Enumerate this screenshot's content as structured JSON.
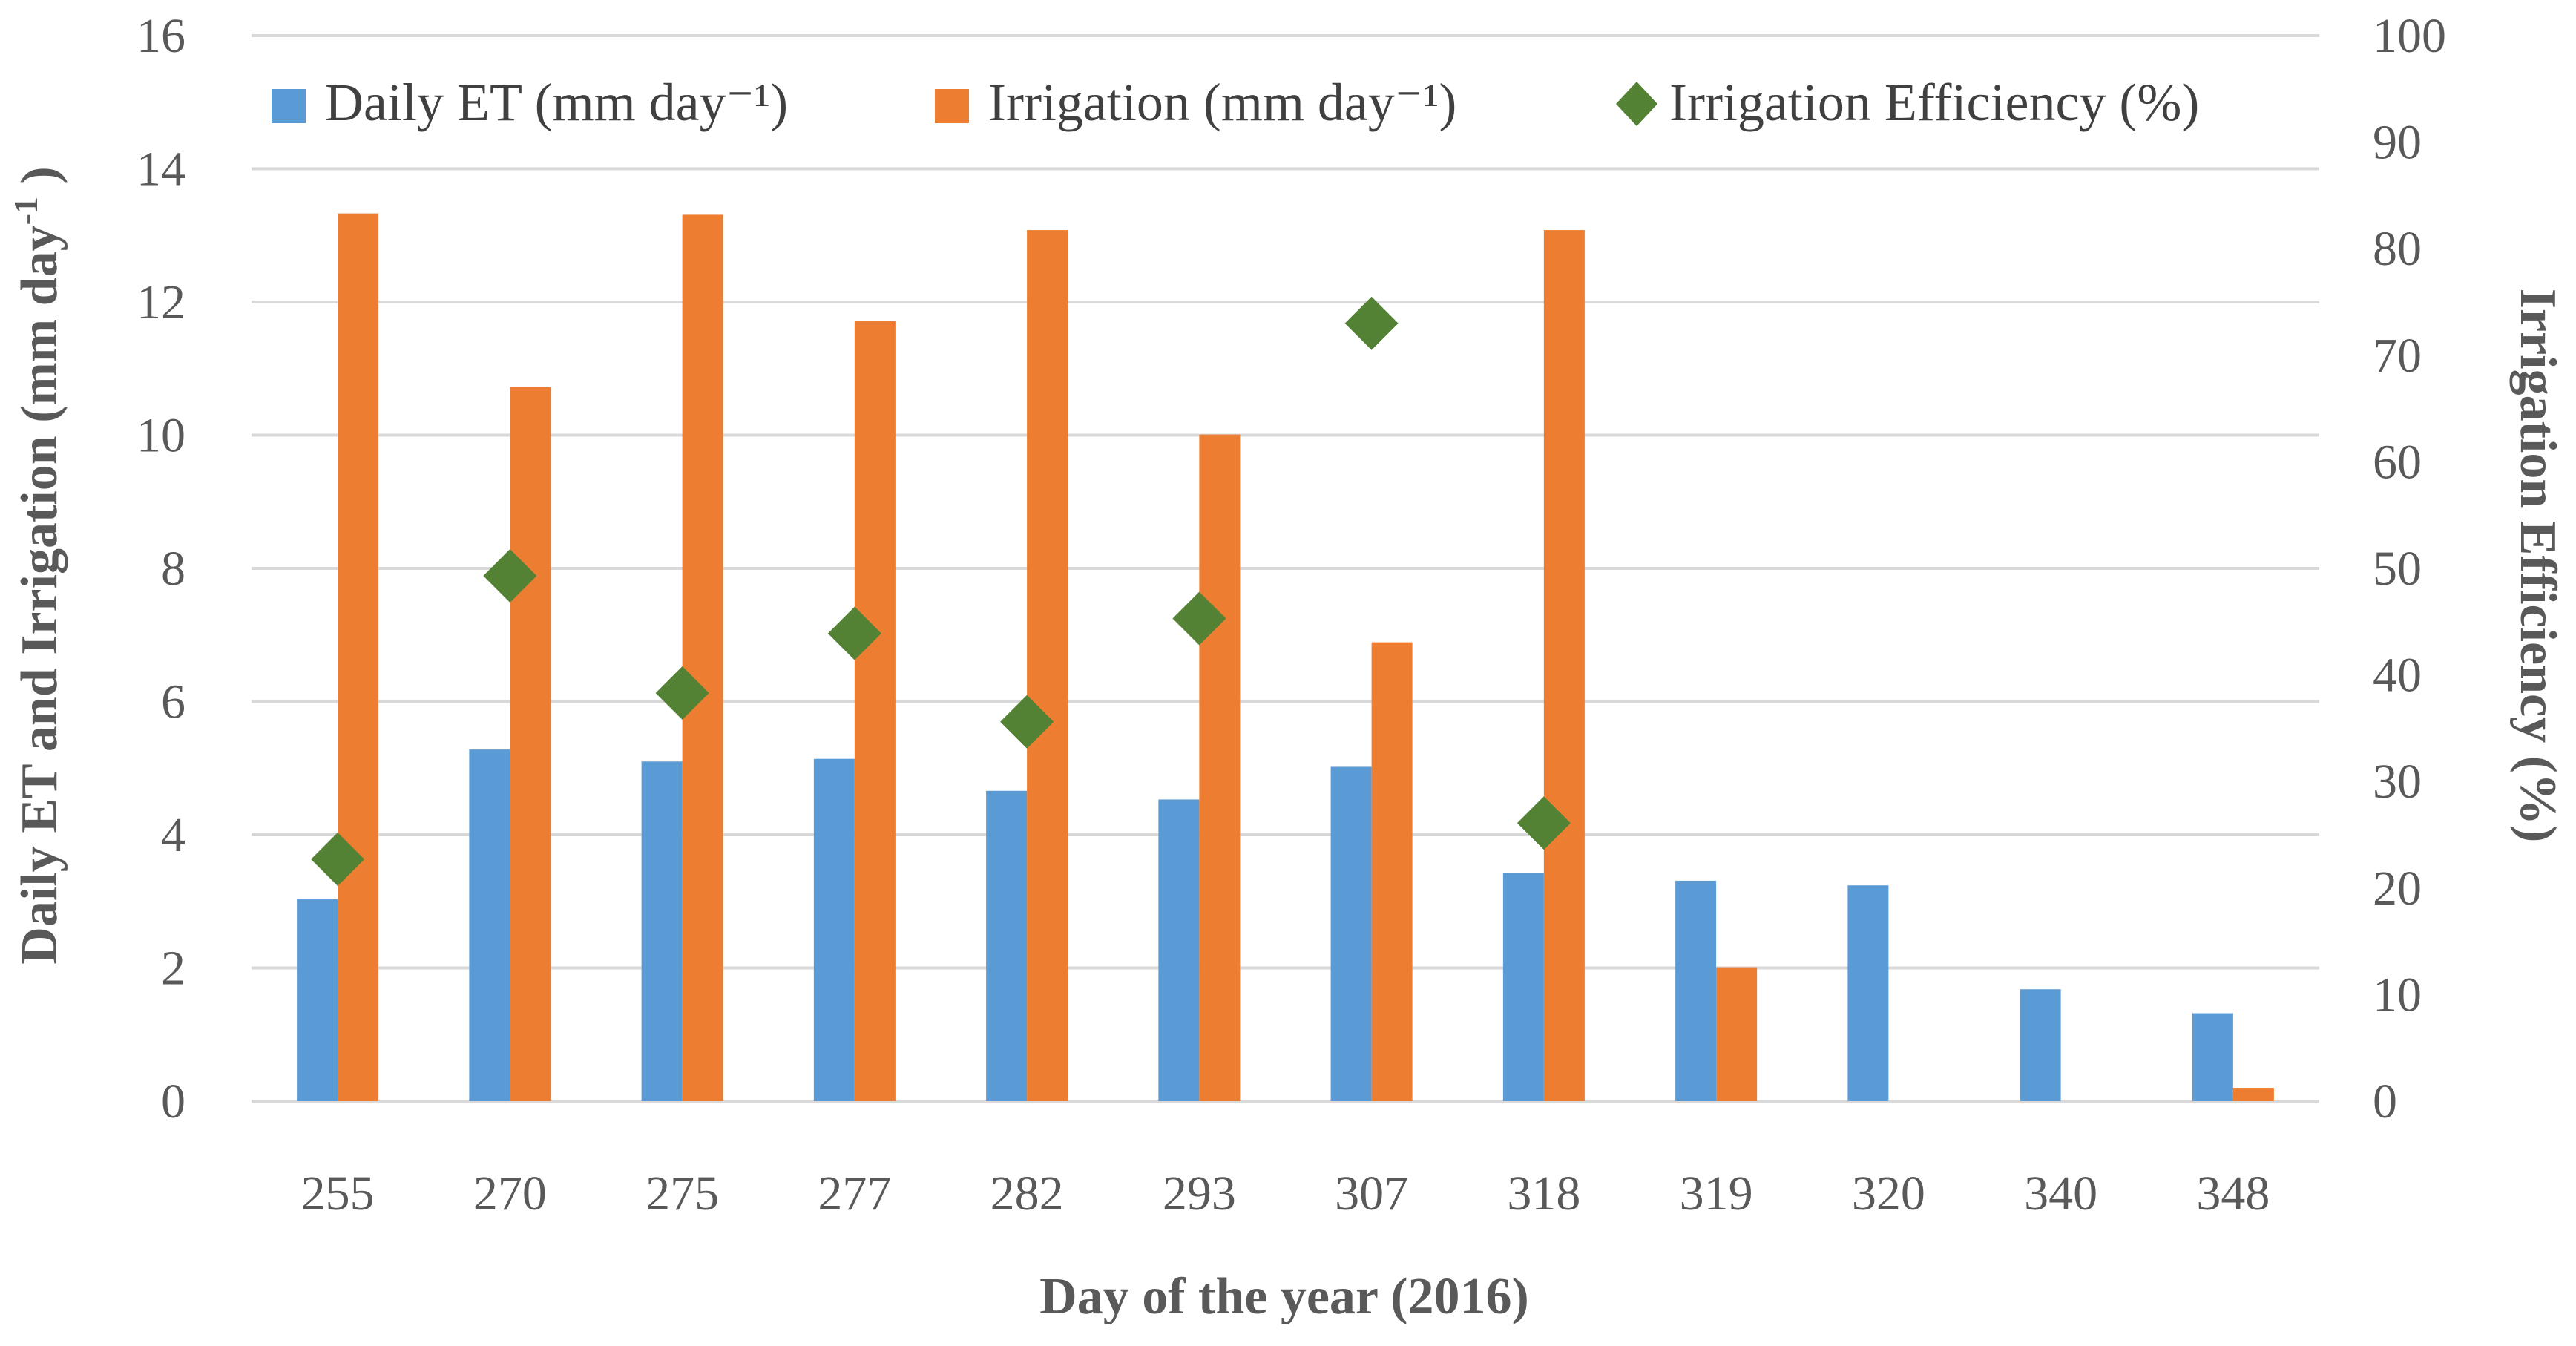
{
  "chart_data": {
    "type": "bar",
    "title": "",
    "categories": [
      "255",
      "270",
      "275",
      "277",
      "282",
      "293",
      "307",
      "318",
      "319",
      "320",
      "340",
      "348"
    ],
    "series": [
      {
        "name": "Daily ET (mm day⁻¹)",
        "kind": "bar",
        "axis": "left",
        "color": "#5b9bd5",
        "values": [
          3.03,
          5.28,
          5.1,
          5.14,
          4.66,
          4.53,
          5.02,
          3.43,
          3.31,
          3.24,
          1.68,
          1.32
        ]
      },
      {
        "name": "Irrigation (mm day⁻¹)",
        "kind": "bar",
        "axis": "left",
        "color": "#ed7d31",
        "values": [
          13.33,
          10.72,
          13.31,
          11.71,
          13.08,
          10.01,
          6.89,
          13.08,
          2.01,
          0,
          0,
          0.2
        ]
      },
      {
        "name": "Irrigation Efficiency (%)",
        "kind": "scatter",
        "axis": "right",
        "color": "#548235",
        "values": [
          22.7,
          49.3,
          38.3,
          43.9,
          35.6,
          45.3,
          null,
          26.1,
          null,
          null,
          null,
          null
        ],
        "extra_points": [
          {
            "x_position": 6.0,
            "value": 73.0
          }
        ]
      }
    ],
    "xlabel": "Day of the year (2016)",
    "ylabel": "Daily ET and Irrigation (mm day",
    "ylabel_sup": "-1",
    "ylabel_close": " )",
    "y2label": "Irrigation Efficiency (%)",
    "ylim": [
      0,
      16
    ],
    "y_ticks": [
      "0",
      "2",
      "4",
      "6",
      "8",
      "10",
      "12",
      "14",
      "16"
    ],
    "y2lim": [
      0,
      100
    ],
    "y2_ticks": [
      "0",
      "10",
      "20",
      "30",
      "40",
      "50",
      "60",
      "70",
      "80",
      "90",
      "100"
    ],
    "grid": true,
    "legend": "top"
  }
}
